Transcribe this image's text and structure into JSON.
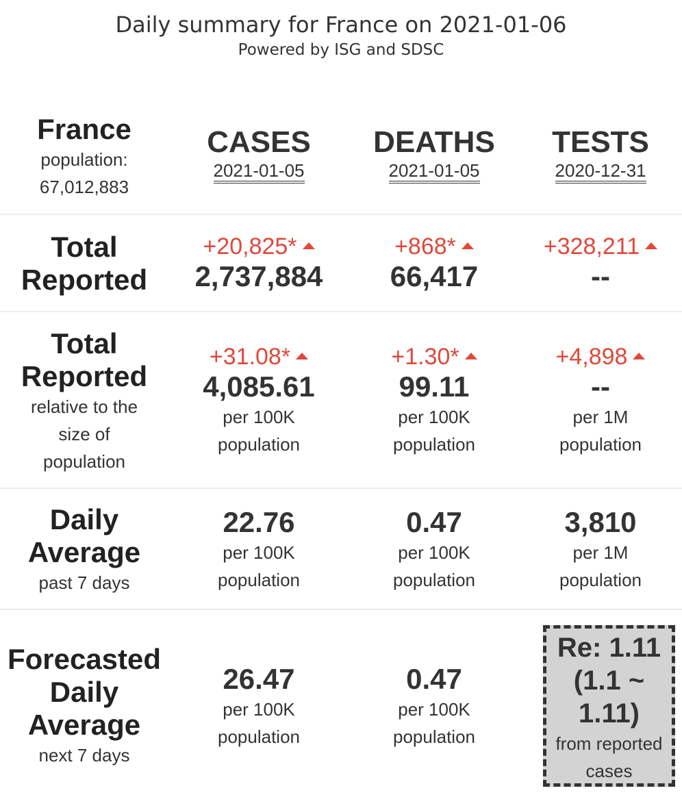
{
  "header": {
    "title": "Daily summary for France on 2021-01-06",
    "subtitle": "Powered by ISG and SDSC"
  },
  "country": {
    "name": "France",
    "population_label": "population:",
    "population": "67,012,883"
  },
  "columns": [
    {
      "title": "CASES",
      "date": "2021-01-05"
    },
    {
      "title": "DEATHS",
      "date": "2021-01-05"
    },
    {
      "title": "TESTS",
      "date": "2020-12-31"
    }
  ],
  "rows": {
    "total_reported": {
      "label_line1": "Total",
      "label_line2": "Reported",
      "cases": {
        "delta": "+20,825*",
        "value": "2,737,884"
      },
      "deaths": {
        "delta": "+868*",
        "value": "66,417"
      },
      "tests": {
        "delta": "+328,211",
        "value": "--"
      }
    },
    "relative": {
      "label_line1": "Total",
      "label_line2": "Reported",
      "sub1": "relative to the",
      "sub2": "size of",
      "sub3": "population",
      "cases": {
        "delta": "+31.08*",
        "value": "4,085.61",
        "unit1": "per 100K",
        "unit2": "population"
      },
      "deaths": {
        "delta": "+1.30*",
        "value": "99.11",
        "unit1": "per 100K",
        "unit2": "population"
      },
      "tests": {
        "delta": "+4,898",
        "value": "--",
        "unit1": "per 1M",
        "unit2": "population"
      }
    },
    "daily_average": {
      "label_line1": "Daily",
      "label_line2": "Average",
      "sub": "past 7 days",
      "cases": {
        "value": "22.76",
        "unit1": "per 100K",
        "unit2": "population"
      },
      "deaths": {
        "value": "0.47",
        "unit1": "per 100K",
        "unit2": "population"
      },
      "tests": {
        "value": "3,810",
        "unit1": "per 1M",
        "unit2": "population"
      }
    },
    "forecast": {
      "label_line1": "Forecasted",
      "label_line2": "Daily",
      "label_line3": "Average",
      "sub": "next 7 days",
      "cases": {
        "value": "26.47",
        "unit1": "per 100K",
        "unit2": "population"
      },
      "deaths": {
        "value": "0.47",
        "unit1": "per 100K",
        "unit2": "population"
      },
      "re": {
        "line1": "Re: 1.11",
        "line2": "(1.1 ~",
        "line3": "1.11)",
        "note1": "from reported",
        "note2": "cases"
      }
    }
  },
  "colors": {
    "increase": "#e0483a",
    "text": "#333333",
    "re_box_bg": "#d3d3d3"
  }
}
